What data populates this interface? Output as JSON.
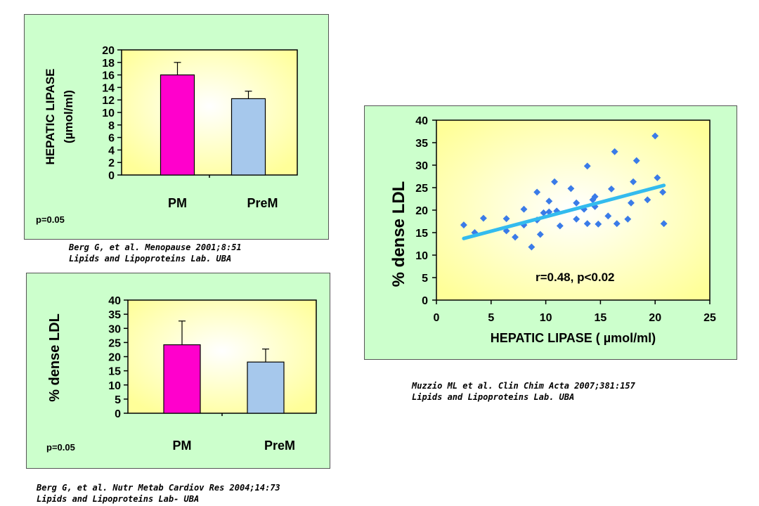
{
  "colors": {
    "panel_bg": "#ccffcc",
    "plot_bg": "#ffff99",
    "pm_bar": "#ff00cc",
    "prem_bar": "#a6c8ec",
    "scatter_point": "#3a7be8",
    "fit_line": "#33bbee"
  },
  "chart_data": [
    {
      "type": "bar",
      "categories": [
        "PM",
        "PreM"
      ],
      "values": [
        16.0,
        12.2
      ],
      "errors": [
        2.0,
        1.2
      ],
      "ylabel_line1": "HEPATIC LIPASE",
      "ylabel_line2": "(µmol/ml)",
      "ylim": [
        0,
        20
      ],
      "yticks": [
        0,
        2,
        4,
        6,
        8,
        10,
        12,
        14,
        16,
        18,
        20
      ],
      "annotation": "p=0.05",
      "caption_line1": "Berg G, et al. Menopause 2001;8:51",
      "caption_line2": "Lipids and Lipoproteins Lab. UBA"
    },
    {
      "type": "bar",
      "categories": [
        "PM",
        "PreM"
      ],
      "values": [
        24.2,
        18.1
      ],
      "errors": [
        8.4,
        4.6
      ],
      "ylabel": "% dense LDL",
      "ylim": [
        0,
        40
      ],
      "yticks": [
        0,
        5,
        10,
        15,
        20,
        25,
        30,
        35,
        40
      ],
      "annotation": "p=0.05",
      "caption_line1": "Berg G, et al. Nutr Metab Cardiov Res 2004;14:73",
      "caption_line2": "Lipids and Lipoproteins Lab- UBA"
    },
    {
      "type": "scatter",
      "xlabel": "HEPATIC LIPASE ( µmol/ml)",
      "ylabel": "% dense LDL",
      "xlim": [
        0,
        25
      ],
      "ylim": [
        0,
        40
      ],
      "xticks": [
        0,
        5,
        10,
        15,
        20,
        25
      ],
      "yticks": [
        0,
        5,
        10,
        15,
        20,
        25,
        30,
        35,
        40
      ],
      "points": [
        [
          2.5,
          16.7
        ],
        [
          3.5,
          15.0
        ],
        [
          4.3,
          18.2
        ],
        [
          6.4,
          18.1
        ],
        [
          6.4,
          15.4
        ],
        [
          7.2,
          14.0
        ],
        [
          8.0,
          20.2
        ],
        [
          8.0,
          16.7
        ],
        [
          8.7,
          11.8
        ],
        [
          9.2,
          17.8
        ],
        [
          9.2,
          24.0
        ],
        [
          9.5,
          14.6
        ],
        [
          9.8,
          19.4
        ],
        [
          10.3,
          22.0
        ],
        [
          10.3,
          19.6
        ],
        [
          10.8,
          26.3
        ],
        [
          11.0,
          19.8
        ],
        [
          11.3,
          16.5
        ],
        [
          12.3,
          24.8
        ],
        [
          12.8,
          21.6
        ],
        [
          12.8,
          18.0
        ],
        [
          13.5,
          20.2
        ],
        [
          13.8,
          29.8
        ],
        [
          13.8,
          17.0
        ],
        [
          14.3,
          22.3
        ],
        [
          14.5,
          23.0
        ],
        [
          14.5,
          20.8
        ],
        [
          14.8,
          16.9
        ],
        [
          15.7,
          18.7
        ],
        [
          16.0,
          24.7
        ],
        [
          16.3,
          33.0
        ],
        [
          16.5,
          17.0
        ],
        [
          17.5,
          18.0
        ],
        [
          17.8,
          21.6
        ],
        [
          18.0,
          26.3
        ],
        [
          18.3,
          31.0
        ],
        [
          19.3,
          22.3
        ],
        [
          20.0,
          36.5
        ],
        [
          20.2,
          27.2
        ],
        [
          20.7,
          24.0
        ],
        [
          20.8,
          17.0
        ]
      ],
      "fit_line": [
        [
          2.5,
          13.7
        ],
        [
          20.8,
          25.5
        ]
      ],
      "annotation": "r=0.48, p<0.02",
      "caption_line1": "Muzzio ML et al. Clin Chim Acta 2007;381:157",
      "caption_line2": "Lipids and Lipoproteins Lab. UBA"
    }
  ]
}
